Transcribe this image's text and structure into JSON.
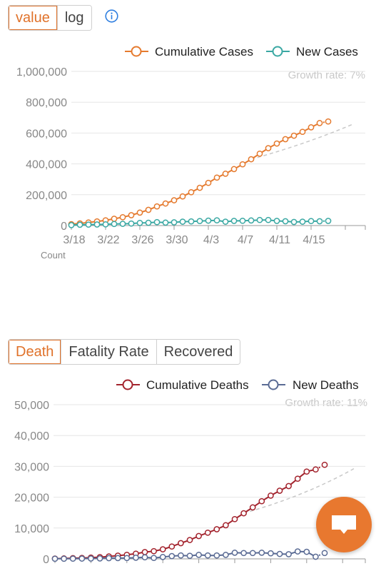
{
  "top_controls": {
    "value_label": "value",
    "log_label": "log",
    "active": "value"
  },
  "bottom_controls": {
    "death_label": "Death",
    "fatality_label": "Fatality Rate",
    "recovered_label": "Recovered",
    "active": "Death"
  },
  "colors": {
    "accent": "#e0722a",
    "cumulative_cases": "#e57a2e",
    "new_cases": "#3aa8a3",
    "cumulative_deaths": "#a3232d",
    "new_deaths": "#5a6b94",
    "trend": "#c8c8c8",
    "chat_button": "#e8782f"
  },
  "icons": {
    "info": "info-icon",
    "chat": "chat-icon"
  },
  "chart_data": [
    {
      "type": "line",
      "x": [
        "3/18",
        "3/19",
        "3/20",
        "3/21",
        "3/22",
        "3/23",
        "3/24",
        "3/25",
        "3/26",
        "3/27",
        "3/28",
        "3/29",
        "3/30",
        "3/31",
        "4/1",
        "4/2",
        "4/3",
        "4/4",
        "4/5",
        "4/6",
        "4/7",
        "4/8",
        "4/9",
        "4/10",
        "4/11",
        "4/12",
        "4/13",
        "4/14",
        "4/15",
        "4/16",
        "4/17"
      ],
      "xticks": [
        "3/18",
        "3/22",
        "3/26",
        "3/30",
        "4/3",
        "4/7",
        "4/11",
        "4/15"
      ],
      "series": [
        {
          "name": "Cumulative Cases",
          "values": [
            9000,
            14000,
            20000,
            27000,
            34000,
            44000,
            54000,
            67000,
            84000,
            102000,
            124000,
            143000,
            164000,
            189000,
            216000,
            245000,
            277000,
            311000,
            336000,
            366000,
            397000,
            430000,
            466000,
            502000,
            532000,
            560000,
            583000,
            608000,
            637000,
            665000,
            675000
          ]
        },
        {
          "name": "New Cases",
          "values": [
            3000,
            5000,
            6000,
            7000,
            8000,
            10000,
            11000,
            13000,
            17000,
            18000,
            22000,
            19000,
            21000,
            25000,
            27000,
            29000,
            32000,
            34000,
            25000,
            30000,
            31000,
            33000,
            36000,
            36000,
            30000,
            28000,
            23000,
            25000,
            29000,
            28000,
            30000
          ]
        }
      ],
      "trend": {
        "label": "Growth rate: 7%"
      },
      "ylim": [
        0,
        1000000
      ],
      "yticks": [
        "0",
        "200,000",
        "400,000",
        "600,000",
        "800,000",
        "1,000,000"
      ],
      "xlabel": "Count",
      "legend": "top-right"
    },
    {
      "type": "line",
      "x": [
        "3/18",
        "3/19",
        "3/20",
        "3/21",
        "3/22",
        "3/23",
        "3/24",
        "3/25",
        "3/26",
        "3/27",
        "3/28",
        "3/29",
        "3/30",
        "3/31",
        "4/1",
        "4/2",
        "4/3",
        "4/4",
        "4/5",
        "4/6",
        "4/7",
        "4/8",
        "4/9",
        "4/10",
        "4/11",
        "4/12",
        "4/13",
        "4/14",
        "4/15",
        "4/16",
        "4/17"
      ],
      "series": [
        {
          "name": "Cumulative Deaths",
          "values": [
            100,
            150,
            220,
            300,
            420,
            560,
            780,
            1040,
            1320,
            1700,
            2200,
            2500,
            3100,
            4000,
            5100,
            6100,
            7400,
            8500,
            9600,
            10900,
            12900,
            14800,
            16700,
            18700,
            20500,
            22100,
            23600,
            26000,
            28300,
            29000,
            30500
          ]
        },
        {
          "name": "New Deaths",
          "values": [
            40,
            50,
            80,
            100,
            120,
            140,
            220,
            260,
            280,
            380,
            500,
            300,
            600,
            900,
            1100,
            1000,
            1300,
            1100,
            1100,
            1300,
            2000,
            1900,
            1900,
            2000,
            1800,
            1600,
            1500,
            2400,
            2300,
            700,
            1900
          ]
        }
      ],
      "trend": {
        "label": "Growth rate: 11%"
      },
      "ylim": [
        0,
        50000
      ],
      "yticks": [
        "0",
        "10,000",
        "20,000",
        "30,000",
        "40,000",
        "50,000"
      ],
      "legend": "top-right"
    }
  ]
}
